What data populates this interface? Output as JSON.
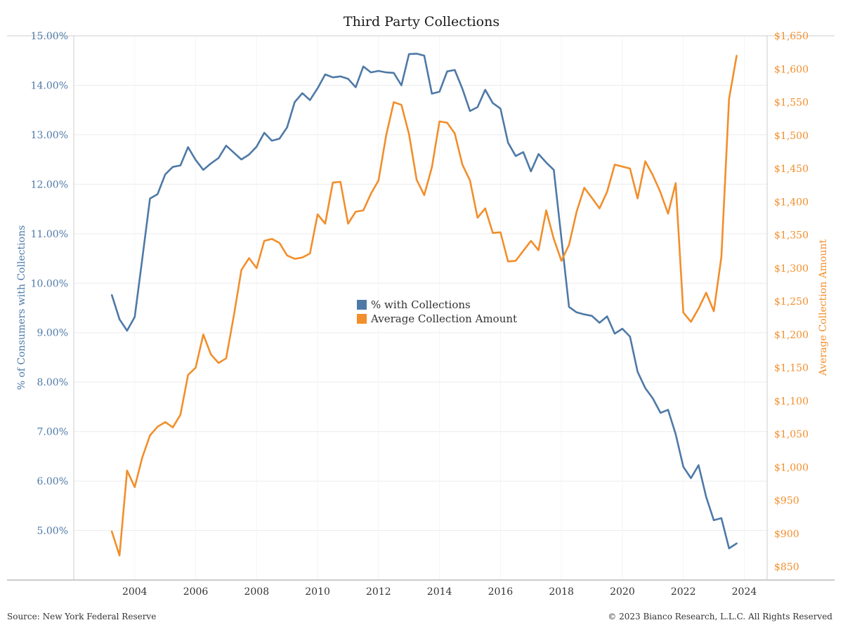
{
  "chart_data": {
    "type": "line",
    "title": "Third Party Collections",
    "ylabel_left": "% of Consumers with Collections",
    "ylabel_right": "Average Collection Amount",
    "ylim_left": [
      4.0,
      15.0
    ],
    "ylim_right": [
      830,
      1650
    ],
    "y_ticks_left": [
      "5.00%",
      "6.00%",
      "7.00%",
      "8.00%",
      "9.00%",
      "10.00%",
      "11.00%",
      "12.00%",
      "13.00%",
      "14.00%",
      "15.00%"
    ],
    "y_ticks_right": [
      "$850",
      "$900",
      "$950",
      "$1,000",
      "$1,050",
      "$1,100",
      "$1,150",
      "$1,200",
      "$1,250",
      "$1,300",
      "$1,350",
      "$1,400",
      "$1,450",
      "$1,500",
      "$1,550",
      "$1,600",
      "$1,650"
    ],
    "x_ticks": [
      "2004",
      "2006",
      "2008",
      "2010",
      "2012",
      "2014",
      "2016",
      "2018",
      "2020",
      "2022",
      "2024"
    ],
    "xlim": [
      2002.0,
      2024.75
    ],
    "grid": true,
    "legend_position": "center",
    "series": [
      {
        "name": "% with Collections",
        "axis": "left",
        "color": "#4e79a7",
        "x": [
          2003.25,
          2003.5,
          2003.75,
          2004.0,
          2004.25,
          2004.5,
          2004.75,
          2005.0,
          2005.25,
          2005.5,
          2005.75,
          2006.0,
          2006.25,
          2006.5,
          2006.75,
          2007.0,
          2007.25,
          2007.5,
          2007.75,
          2008.0,
          2008.25,
          2008.5,
          2008.75,
          2009.0,
          2009.25,
          2009.5,
          2009.75,
          2010.0,
          2010.25,
          2010.5,
          2010.75,
          2011.0,
          2011.25,
          2011.5,
          2011.75,
          2012.0,
          2012.25,
          2012.5,
          2012.75,
          2013.0,
          2013.25,
          2013.5,
          2013.75,
          2014.0,
          2014.25,
          2014.5,
          2014.75,
          2015.0,
          2015.25,
          2015.5,
          2015.75,
          2016.0,
          2016.25,
          2016.5,
          2016.75,
          2017.0,
          2017.25,
          2017.5,
          2017.75,
          2018.0,
          2018.25,
          2018.5,
          2018.75,
          2019.0,
          2019.25,
          2019.5,
          2019.75,
          2020.0,
          2020.25,
          2020.5,
          2020.75,
          2021.0,
          2021.25,
          2021.5,
          2021.75,
          2022.0,
          2022.25,
          2022.5,
          2022.75,
          2023.0,
          2023.25,
          2023.5,
          2023.75
        ],
        "values": [
          9.76,
          9.27,
          9.04,
          9.32,
          10.5,
          11.71,
          11.8,
          12.2,
          12.35,
          12.38,
          12.75,
          12.49,
          12.29,
          12.42,
          12.53,
          12.78,
          12.64,
          12.5,
          12.6,
          12.76,
          13.04,
          12.88,
          12.92,
          13.15,
          13.66,
          13.84,
          13.7,
          13.94,
          14.22,
          14.16,
          14.18,
          14.13,
          13.96,
          14.38,
          14.26,
          14.29,
          14.26,
          14.25,
          14.0,
          14.63,
          14.64,
          14.6,
          13.83,
          13.87,
          14.28,
          14.31,
          13.93,
          13.48,
          13.56,
          13.91,
          13.64,
          13.53,
          12.84,
          12.57,
          12.65,
          12.26,
          12.61,
          12.44,
          12.29,
          10.9,
          9.52,
          9.41,
          9.37,
          9.34,
          9.2,
          9.33,
          8.98,
          9.08,
          8.92,
          8.21,
          7.88,
          7.67,
          7.38,
          7.44,
          6.95,
          6.29,
          6.06,
          6.32,
          5.68,
          5.21,
          5.25,
          4.64,
          4.74
        ]
      },
      {
        "name": "Average Collection Amount",
        "axis": "right",
        "color": "#f28e2b",
        "x": [
          2003.25,
          2003.5,
          2003.75,
          2004.0,
          2004.25,
          2004.5,
          2004.75,
          2005.0,
          2005.25,
          2005.5,
          2005.75,
          2006.0,
          2006.25,
          2006.5,
          2006.75,
          2007.0,
          2007.25,
          2007.5,
          2007.75,
          2008.0,
          2008.25,
          2008.5,
          2008.75,
          2009.0,
          2009.25,
          2009.5,
          2009.75,
          2010.0,
          2010.25,
          2010.5,
          2010.75,
          2011.0,
          2011.25,
          2011.5,
          2011.75,
          2012.0,
          2012.25,
          2012.5,
          2012.75,
          2013.0,
          2013.25,
          2013.5,
          2013.75,
          2014.0,
          2014.25,
          2014.5,
          2014.75,
          2015.0,
          2015.25,
          2015.5,
          2015.75,
          2016.0,
          2016.25,
          2016.5,
          2016.75,
          2017.0,
          2017.25,
          2017.5,
          2017.75,
          2018.0,
          2018.25,
          2018.5,
          2018.75,
          2019.0,
          2019.25,
          2019.5,
          2019.75,
          2020.0,
          2020.25,
          2020.5,
          2020.75,
          2021.0,
          2021.25,
          2021.5,
          2021.75,
          2022.0,
          2022.25,
          2022.5,
          2022.75,
          2023.0,
          2023.25,
          2023.5,
          2023.75
        ],
        "values": [
          903,
          867,
          995,
          970,
          1015,
          1048,
          1061,
          1068,
          1060,
          1079,
          1139,
          1150,
          1200,
          1170,
          1157,
          1164,
          1228,
          1297,
          1315,
          1300,
          1341,
          1344,
          1338,
          1319,
          1314,
          1316,
          1322,
          1381,
          1367,
          1429,
          1430,
          1367,
          1385,
          1387,
          1412,
          1432,
          1500,
          1550,
          1546,
          1502,
          1433,
          1410,
          1452,
          1521,
          1519,
          1503,
          1456,
          1432,
          1376,
          1390,
          1353,
          1354,
          1310,
          1311,
          1326,
          1341,
          1327,
          1387,
          1344,
          1311,
          1335,
          1385,
          1421,
          1406,
          1390,
          1415,
          1456,
          1453,
          1450,
          1405,
          1461,
          1440,
          1414,
          1382,
          1428,
          1233,
          1219,
          1239,
          1263,
          1235,
          1317,
          1555,
          1620
        ]
      }
    ]
  },
  "footer": {
    "source": "Source: New York Federal Reserve",
    "copyright": "© 2023 Bianco Research, L.L.C. All Rights Reserved"
  }
}
